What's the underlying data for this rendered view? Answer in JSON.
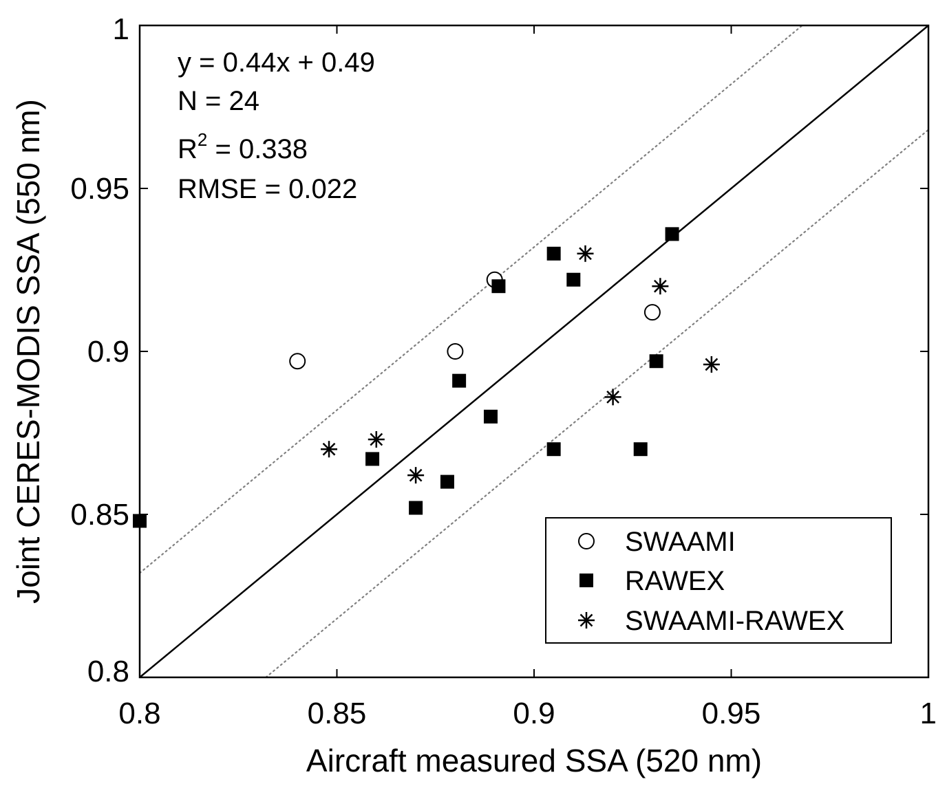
{
  "chart_data": {
    "type": "scatter",
    "xlabel": "Aircraft measured SSA (520 nm)",
    "ylabel": "Joint CERES-MODIS SSA (550 nm)",
    "xlim": [
      0.8,
      1.0
    ],
    "ylim": [
      0.8,
      1.0
    ],
    "x_ticks": [
      "0.8",
      "0.85",
      "0.9",
      "0.95",
      "1"
    ],
    "y_ticks": [
      "0.8",
      "0.85",
      "0.9",
      "0.95",
      "1"
    ],
    "grid": false,
    "legend_position": "bottom-right",
    "annotations": {
      "equation": "y = 0.44x + 0.49",
      "n": "N = 24",
      "r2_prefix": "R",
      "r2_sup": "2",
      "r2_value": " = 0.338",
      "rmse": "RMSE = 0.022"
    },
    "reference_lines": [
      {
        "style": "solid",
        "color": "#000000",
        "slope": 1,
        "intercept": 0
      },
      {
        "style": "dotted",
        "color": "#808080",
        "slope": 1,
        "intercept": 0.032
      },
      {
        "style": "dotted",
        "color": "#808080",
        "slope": 1,
        "intercept": -0.032
      }
    ],
    "series": [
      {
        "name": "SWAAMI",
        "marker": "open-circle",
        "points": [
          {
            "x": 0.84,
            "y": 0.897
          },
          {
            "x": 0.88,
            "y": 0.9
          },
          {
            "x": 0.89,
            "y": 0.922
          },
          {
            "x": 0.93,
            "y": 0.912
          }
        ]
      },
      {
        "name": "RAWEX",
        "marker": "filled-square",
        "points": [
          {
            "x": 0.8,
            "y": 0.848
          },
          {
            "x": 0.859,
            "y": 0.867
          },
          {
            "x": 0.87,
            "y": 0.852
          },
          {
            "x": 0.878,
            "y": 0.86
          },
          {
            "x": 0.881,
            "y": 0.891
          },
          {
            "x": 0.889,
            "y": 0.88
          },
          {
            "x": 0.891,
            "y": 0.92
          },
          {
            "x": 0.905,
            "y": 0.93
          },
          {
            "x": 0.905,
            "y": 0.87
          },
          {
            "x": 0.91,
            "y": 0.922
          },
          {
            "x": 0.927,
            "y": 0.87
          },
          {
            "x": 0.931,
            "y": 0.897
          },
          {
            "x": 0.935,
            "y": 0.936
          }
        ]
      },
      {
        "name": "SWAAMI-RAWEX",
        "marker": "asterisk",
        "points": [
          {
            "x": 0.848,
            "y": 0.87
          },
          {
            "x": 0.86,
            "y": 0.873
          },
          {
            "x": 0.87,
            "y": 0.862
          },
          {
            "x": 0.913,
            "y": 0.93
          },
          {
            "x": 0.92,
            "y": 0.886
          },
          {
            "x": 0.932,
            "y": 0.92
          },
          {
            "x": 0.945,
            "y": 0.896
          }
        ]
      }
    ]
  }
}
